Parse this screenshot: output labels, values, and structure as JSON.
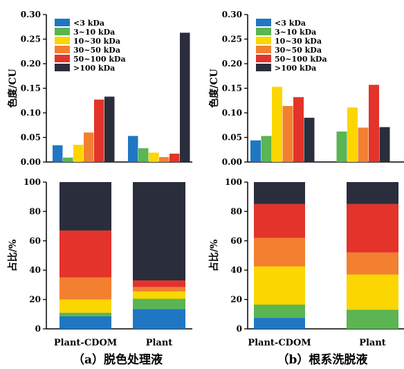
{
  "colors": {
    "<3 kDa": "#1f77c4",
    "3~10 kDa": "#5ab552",
    "10~30 kDa": "#fbd600",
    "30~50 kDa": "#f28030",
    "50~100 kDa": "#e3332a",
    ">100 kDa": "#2a2d3c"
  },
  "chart_data": [
    {
      "id": "a-top",
      "type": "bar",
      "ylabel": "色度/CU",
      "ylim": [
        0,
        0.3
      ],
      "yticks": [
        "0.00",
        "0.05",
        "0.10",
        "0.15",
        "0.20",
        "0.25",
        "0.30"
      ],
      "yticks_values": [
        0,
        0.05,
        0.1,
        0.15,
        0.2,
        0.25,
        0.3
      ],
      "categories": [
        "Plant-CDOM",
        "Plant"
      ],
      "legend": {
        "placement": "top-left",
        "entries": [
          "<3 kDa",
          "3~10 kDa",
          "10~30 kDa",
          "30~50 kDa",
          "50~100 kDa",
          ">100 kDa"
        ]
      },
      "series": [
        {
          "name": "<3 kDa",
          "values": [
            0.034,
            0.053
          ]
        },
        {
          "name": "3~10 kDa",
          "values": [
            0.009,
            0.028
          ]
        },
        {
          "name": "10~30 kDa",
          "values": [
            0.035,
            0.019
          ]
        },
        {
          "name": "30~50 kDa",
          "values": [
            0.06,
            0.01
          ]
        },
        {
          "name": "50~100 kDa",
          "values": [
            0.127,
            0.017
          ]
        },
        {
          "name": ">100 kDa",
          "values": [
            0.133,
            0.263
          ]
        }
      ]
    },
    {
      "id": "b-top",
      "type": "bar",
      "ylabel": "色度/CU",
      "ylim": [
        0,
        0.3
      ],
      "yticks": [
        "0.00",
        "0.05",
        "0.10",
        "0.15",
        "0.20",
        "0.25",
        "0.30"
      ],
      "yticks_values": [
        0,
        0.05,
        0.1,
        0.15,
        0.2,
        0.25,
        0.3
      ],
      "categories": [
        "Plant-CDOM",
        "Plant"
      ],
      "legend": {
        "placement": "top-left",
        "entries": [
          "<3 kDa",
          "3~10 kDa",
          "10~30 kDa",
          "30~50 kDa",
          "50~100 kDa",
          ">100 kDa"
        ]
      },
      "series": [
        {
          "name": "<3 kDa",
          "values": [
            0.044,
            0
          ]
        },
        {
          "name": "3~10 kDa",
          "values": [
            0.053,
            0.062
          ]
        },
        {
          "name": "10~30 kDa",
          "values": [
            0.153,
            0.111
          ]
        },
        {
          "name": "30~50 kDa",
          "values": [
            0.114,
            0.07
          ]
        },
        {
          "name": "50~100 kDa",
          "values": [
            0.132,
            0.157
          ]
        },
        {
          "name": ">100 kDa",
          "values": [
            0.09,
            0.071
          ]
        }
      ]
    },
    {
      "id": "a-bottom",
      "type": "bar",
      "stacked": true,
      "ylabel": "占比/%",
      "ylim": [
        0,
        100
      ],
      "yticks": [
        "0",
        "20",
        "40",
        "60",
        "80",
        "100"
      ],
      "yticks_values": [
        0,
        20,
        40,
        60,
        80,
        100
      ],
      "categories": [
        "Plant-CDOM",
        "Plant"
      ],
      "series": [
        {
          "name": "<3 kDa",
          "values": [
            8.5,
            13.5
          ]
        },
        {
          "name": "3~10 kDa",
          "values": [
            2.5,
            7.0
          ]
        },
        {
          "name": "10~30 kDa",
          "values": [
            9.0,
            5.0
          ]
        },
        {
          "name": "30~50 kDa",
          "values": [
            15.0,
            3.0
          ]
        },
        {
          "name": "50~100 kDa",
          "values": [
            32.0,
            4.5
          ]
        },
        {
          "name": ">100 kDa",
          "values": [
            33.0,
            67.0
          ]
        }
      ]
    },
    {
      "id": "b-bottom",
      "type": "bar",
      "stacked": true,
      "ylabel": "占比/%",
      "ylim": [
        0,
        100
      ],
      "yticks": [
        "0",
        "20",
        "40",
        "60",
        "80",
        "100"
      ],
      "yticks_values": [
        0,
        20,
        40,
        60,
        80,
        100
      ],
      "categories": [
        "Plant-CDOM",
        "Plant"
      ],
      "series": [
        {
          "name": "<3 kDa",
          "values": [
            7.5,
            0
          ]
        },
        {
          "name": "3~10 kDa",
          "values": [
            9.0,
            13.0
          ]
        },
        {
          "name": "10~30 kDa",
          "values": [
            26.0,
            24.0
          ]
        },
        {
          "name": "30~50 kDa",
          "values": [
            19.5,
            15.0
          ]
        },
        {
          "name": "50~100 kDa",
          "values": [
            23.0,
            33.0
          ]
        },
        {
          "name": ">100 kDa",
          "values": [
            15.0,
            15.0
          ]
        }
      ]
    }
  ],
  "captions": {
    "a": "（a）脱色处理液",
    "b": "（b）根系洗脱液"
  }
}
